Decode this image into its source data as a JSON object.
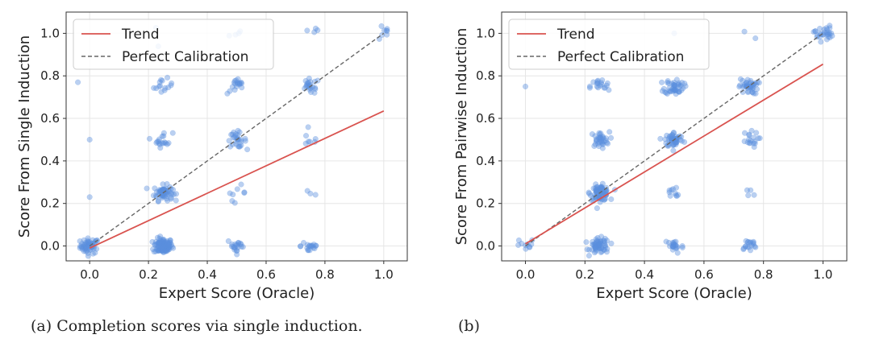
{
  "chart_data": [
    {
      "type": "scatter",
      "xlabel": "Expert Score (Oracle)",
      "ylabel": "Score From Single Induction",
      "xlim": [
        -0.08,
        1.08
      ],
      "ylim": [
        -0.07,
        1.1
      ],
      "xticks": [
        "0.0",
        "0.2",
        "0.4",
        "0.6",
        "0.8",
        "1.0"
      ],
      "yticks": [
        "0.0",
        "0.2",
        "0.4",
        "0.6",
        "0.8",
        "1.0"
      ],
      "grid": true,
      "legend": {
        "placement": "top-left",
        "entries": [
          {
            "label": "Trend",
            "style": "solid-red"
          },
          {
            "label": "Perfect Calibration",
            "style": "dashed-gray"
          }
        ]
      },
      "trend": {
        "x": [
          0.0,
          1.0
        ],
        "y": [
          -0.01,
          0.635
        ]
      },
      "calibration": {
        "x": [
          0.0,
          1.0
        ],
        "y": [
          0.0,
          1.0
        ]
      },
      "clusters": [
        {
          "x": 0.0,
          "y": 0.0,
          "n": 55
        },
        {
          "x": 0.0,
          "y": 0.5,
          "n": 1
        },
        {
          "x": 0.0,
          "y": 0.23,
          "n": 1
        },
        {
          "x": -0.04,
          "y": 0.77,
          "n": 1
        },
        {
          "x": 0.25,
          "y": 0.0,
          "n": 110
        },
        {
          "x": 0.25,
          "y": 0.25,
          "n": 65
        },
        {
          "x": 0.25,
          "y": 0.5,
          "n": 18
        },
        {
          "x": 0.25,
          "y": 0.75,
          "n": 14
        },
        {
          "x": 0.25,
          "y": 1.0,
          "n": 2
        },
        {
          "x": 0.5,
          "y": 0.0,
          "n": 20
        },
        {
          "x": 0.5,
          "y": 0.25,
          "n": 8
        },
        {
          "x": 0.5,
          "y": 0.5,
          "n": 28
        },
        {
          "x": 0.5,
          "y": 0.75,
          "n": 18
        },
        {
          "x": 0.5,
          "y": 1.0,
          "n": 4
        },
        {
          "x": 0.75,
          "y": 0.0,
          "n": 18
        },
        {
          "x": 0.75,
          "y": 0.25,
          "n": 3
        },
        {
          "x": 0.75,
          "y": 0.5,
          "n": 7
        },
        {
          "x": 0.75,
          "y": 0.75,
          "n": 22
        },
        {
          "x": 0.75,
          "y": 1.0,
          "n": 4
        },
        {
          "x": 1.0,
          "y": 1.0,
          "n": 8
        }
      ]
    },
    {
      "type": "scatter",
      "xlabel": "Expert Score (Oracle)",
      "ylabel": "Score From Pairwise Induction",
      "xlim": [
        -0.08,
        1.08
      ],
      "ylim": [
        -0.07,
        1.1
      ],
      "xticks": [
        "0.0",
        "0.2",
        "0.4",
        "0.6",
        "0.8",
        "1.0"
      ],
      "yticks": [
        "0.0",
        "0.2",
        "0.4",
        "0.6",
        "0.8",
        "1.0"
      ],
      "grid": true,
      "legend": {
        "placement": "top-left",
        "entries": [
          {
            "label": "Trend",
            "style": "solid-red"
          },
          {
            "label": "Perfect Calibration",
            "style": "dashed-gray"
          }
        ]
      },
      "trend": {
        "x": [
          0.0,
          1.0
        ],
        "y": [
          0.01,
          0.855
        ]
      },
      "calibration": {
        "x": [
          0.0,
          1.0
        ],
        "y": [
          0.0,
          1.0
        ]
      },
      "clusters": [
        {
          "x": 0.0,
          "y": 0.0,
          "n": 10
        },
        {
          "x": 0.0,
          "y": 0.75,
          "n": 1
        },
        {
          "x": 0.25,
          "y": 0.0,
          "n": 60
        },
        {
          "x": 0.25,
          "y": 0.25,
          "n": 75
        },
        {
          "x": 0.25,
          "y": 0.5,
          "n": 35
        },
        {
          "x": 0.25,
          "y": 0.75,
          "n": 18
        },
        {
          "x": 0.5,
          "y": 0.0,
          "n": 22
        },
        {
          "x": 0.5,
          "y": 0.25,
          "n": 10
        },
        {
          "x": 0.5,
          "y": 0.5,
          "n": 50
        },
        {
          "x": 0.5,
          "y": 0.75,
          "n": 45
        },
        {
          "x": 0.5,
          "y": 1.0,
          "n": 1
        },
        {
          "x": 0.75,
          "y": 0.0,
          "n": 18
        },
        {
          "x": 0.75,
          "y": 0.25,
          "n": 4
        },
        {
          "x": 0.75,
          "y": 0.5,
          "n": 18
        },
        {
          "x": 0.75,
          "y": 0.75,
          "n": 40
        },
        {
          "x": 0.75,
          "y": 1.0,
          "n": 2
        },
        {
          "x": 1.0,
          "y": 1.0,
          "n": 28
        }
      ]
    }
  ],
  "captions": {
    "a": "(a) Completion scores via single induction.",
    "b": "(b)"
  },
  "colors": {
    "point": "#5b8fdd",
    "trend": "#d9534f",
    "calibration": "#666666",
    "grid": "#e6e6e6",
    "axis": "#333333"
  }
}
